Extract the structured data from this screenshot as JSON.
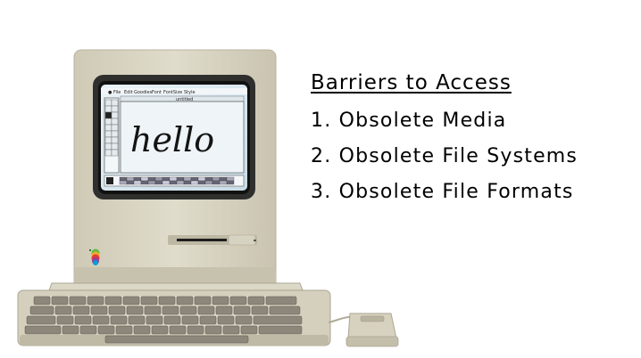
{
  "computer": {
    "screen_menu": [
      "File",
      "Edit",
      "Goodies",
      "Font",
      "FontSize",
      "Style"
    ],
    "window_title": "untitled",
    "screen_greeting": "hello"
  },
  "slide": {
    "heading": "Barriers to Access",
    "items": [
      "1. Obsolete Media",
      "2. Obsolete File Systems",
      "3. Obsolete File Formats"
    ]
  }
}
